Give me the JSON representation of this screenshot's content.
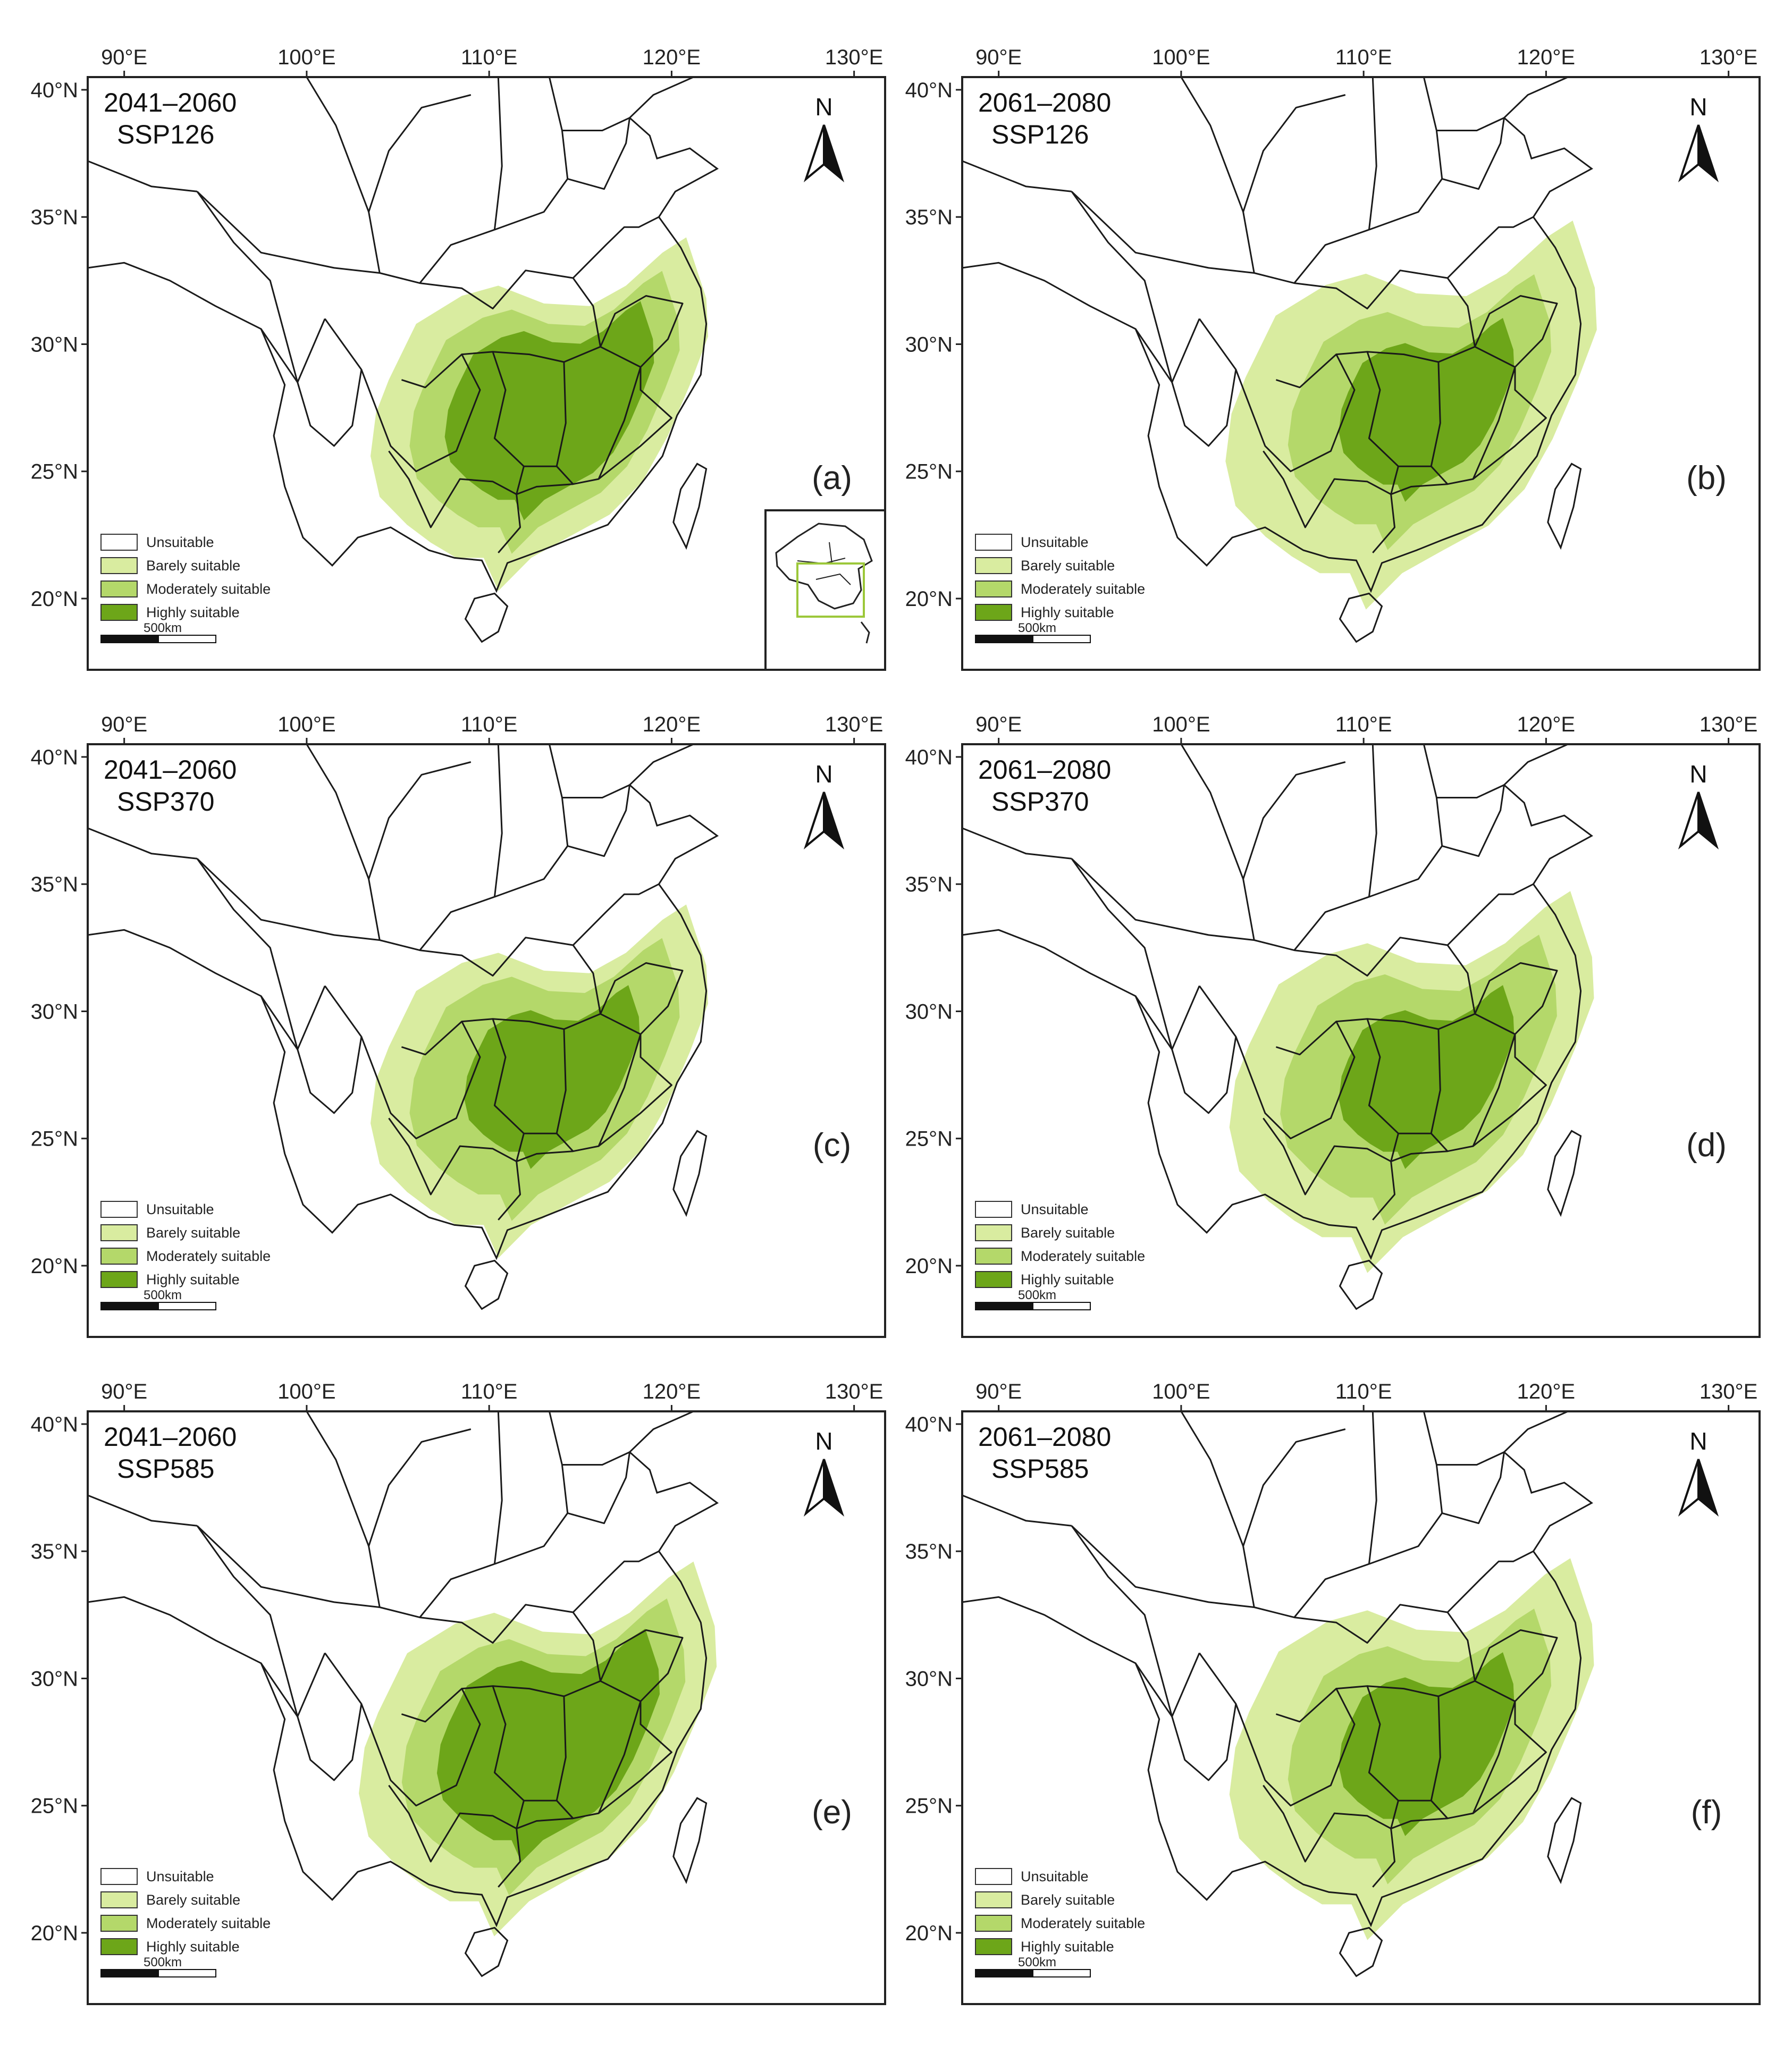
{
  "figure": {
    "axis_labels": {
      "longitude_ticks": [
        "90°E",
        "100°E",
        "110°E",
        "120°E",
        "130°E"
      ],
      "latitude_ticks": [
        "40°N",
        "35°N",
        "30°N",
        "25°N",
        "20°N"
      ]
    },
    "legend": [
      {
        "label": "Unsuitable",
        "color": "#ffffff"
      },
      {
        "label": "Barely suitable",
        "color": "#d9eca0"
      },
      {
        "label": "Moderately suitable",
        "color": "#b4d86a"
      },
      {
        "label": "Highly suitable",
        "color": "#6da619"
      }
    ],
    "scale_bar_label": "500km",
    "north_label": "N",
    "panels": [
      {
        "id": "a",
        "period": "2041–2060",
        "scenario": "SSP126",
        "label": "(a)",
        "has_inset": true,
        "low_fraction": 1.0,
        "mid_fraction": 0.8,
        "high_fraction": 0.62
      },
      {
        "id": "b",
        "period": "2061–2080",
        "scenario": "SSP126",
        "label": "(b)",
        "has_inset": false,
        "low_fraction": 1.1,
        "mid_fraction": 0.78,
        "high_fraction": 0.52
      },
      {
        "id": "c",
        "period": "2041–2060",
        "scenario": "SSP370",
        "label": "(c)",
        "has_inset": false,
        "low_fraction": 1.0,
        "mid_fraction": 0.8,
        "high_fraction": 0.52
      },
      {
        "id": "d",
        "period": "2061–2080",
        "scenario": "SSP370",
        "label": "(d)",
        "has_inset": false,
        "low_fraction": 1.08,
        "mid_fraction": 0.82,
        "high_fraction": 0.52
      },
      {
        "id": "e",
        "period": "2041–2060",
        "scenario": "SSP585",
        "label": "(e)",
        "has_inset": false,
        "low_fraction": 1.06,
        "mid_fraction": 0.84,
        "high_fraction": 0.66
      },
      {
        "id": "f",
        "period": "2061–2080",
        "scenario": "SSP585",
        "label": "(f)",
        "has_inset": false,
        "low_fraction": 1.08,
        "mid_fraction": 0.78,
        "high_fraction": 0.52
      }
    ]
  }
}
